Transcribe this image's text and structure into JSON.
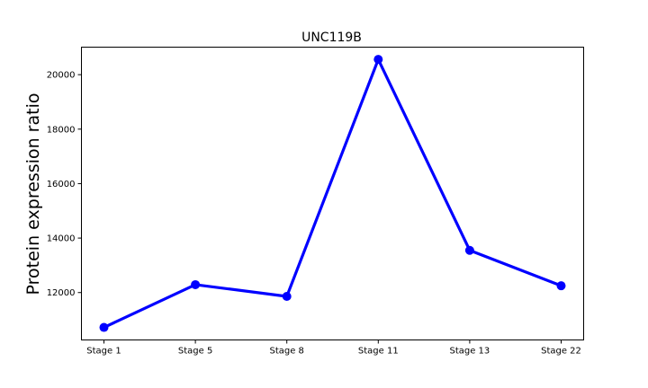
{
  "chart_data": {
    "type": "line",
    "title": "UNC119B",
    "xlabel": "",
    "ylabel": "Protein expression ratio",
    "categories": [
      "Stage 1",
      "Stage 5",
      "Stage 8",
      "Stage 11",
      "Stage 13",
      "Stage 22"
    ],
    "series": [
      {
        "values": [
          10720,
          12290,
          11860,
          20560,
          13550,
          12250
        ],
        "color": "#0000ff"
      }
    ],
    "ylim": [
      10260,
      21010
    ],
    "yticks": [
      12000,
      14000,
      16000,
      18000,
      20000
    ],
    "ytick_labels": [
      "12000",
      "14000",
      "16000",
      "18000",
      "20000"
    ],
    "grid": false,
    "legend": "none",
    "marker": "circle"
  }
}
